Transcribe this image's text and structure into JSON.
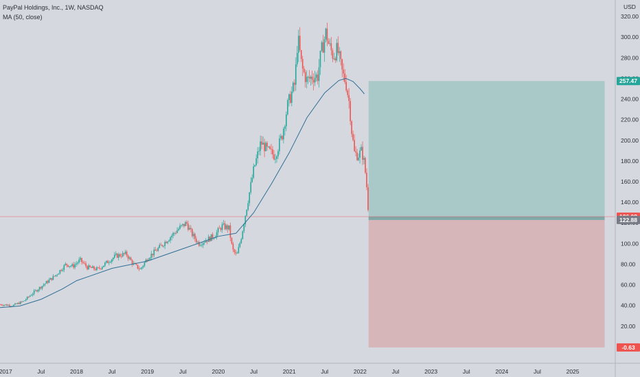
{
  "header": {
    "symbol_line": "PayPal Holdings, Inc., 1W, NASDAQ",
    "indicator_line": "MA (50, close)"
  },
  "currency": "USD",
  "colors": {
    "background": "#d5d8df",
    "up": "#26a69a",
    "down": "#ef5350",
    "ma": "#2f6f94",
    "profit_zone": "#a9c9c9",
    "loss_zone": "#d7b6ba",
    "last_price_line": "#ef5350",
    "axis_line": "#b2b5be"
  },
  "tags": {
    "target": {
      "label": "257.47",
      "value": 257.47,
      "color": "#26a69a"
    },
    "last": {
      "label": "126.08",
      "value": 126.08,
      "color": "#ef5350"
    },
    "entry": {
      "label": "122.88",
      "value": 122.88,
      "color": "#787b86"
    },
    "stop": {
      "label": "-0.63",
      "value": -0.63,
      "color": "#ef5350"
    }
  },
  "chart_data": {
    "type": "candlestick",
    "title": "PayPal Holdings, Inc., 1W, NASDAQ",
    "indicator": "MA (50, close)",
    "x_axis": {
      "start": 2016.92,
      "end": 2025.6,
      "tick_labels": [
        "2017",
        "Jul",
        "2018",
        "Jul",
        "2019",
        "Jul",
        "2020",
        "Jul",
        "2021",
        "Jul",
        "2022",
        "Jul",
        "2023",
        "Jul",
        "2024",
        "Jul",
        "2025"
      ],
      "tick_values": [
        2017.0,
        2017.5,
        2018.0,
        2018.5,
        2019.0,
        2019.5,
        2020.0,
        2020.5,
        2021.0,
        2021.5,
        2022.0,
        2022.5,
        2023.0,
        2023.5,
        2024.0,
        2024.5,
        2025.0
      ]
    },
    "y_axis": {
      "label": "USD",
      "ylim": [
        -16,
        336
      ],
      "tick_values": [
        20,
        40,
        60,
        80,
        100,
        120,
        140,
        160,
        180,
        200,
        220,
        240,
        260,
        280,
        300,
        320
      ],
      "tick_labels": [
        "20.00",
        "40.00",
        "60.00",
        "80.00",
        "100.00",
        "120.00",
        "140.00",
        "160.00",
        "180.00",
        "200.00",
        "220.00",
        "240.00",
        "260.00",
        "280.00",
        "300.00",
        "320.00"
      ]
    },
    "price_path": [
      [
        2016.92,
        41
      ],
      [
        2017.1,
        40
      ],
      [
        2017.25,
        44
      ],
      [
        2017.4,
        53
      ],
      [
        2017.55,
        61
      ],
      [
        2017.7,
        69
      ],
      [
        2017.85,
        80
      ],
      [
        2017.95,
        78
      ],
      [
        2018.05,
        84
      ],
      [
        2018.15,
        77
      ],
      [
        2018.3,
        75
      ],
      [
        2018.45,
        83
      ],
      [
        2018.55,
        88
      ],
      [
        2018.7,
        90
      ],
      [
        2018.8,
        80
      ],
      [
        2018.9,
        75
      ],
      [
        2019.0,
        86
      ],
      [
        2019.15,
        95
      ],
      [
        2019.3,
        105
      ],
      [
        2019.45,
        115
      ],
      [
        2019.55,
        120
      ],
      [
        2019.62,
        110
      ],
      [
        2019.72,
        100
      ],
      [
        2019.85,
        104
      ],
      [
        2019.95,
        108
      ],
      [
        2020.05,
        117
      ],
      [
        2020.15,
        115
      ],
      [
        2020.2,
        94
      ],
      [
        2020.26,
        88
      ],
      [
        2020.32,
        105
      ],
      [
        2020.4,
        135
      ],
      [
        2020.5,
        172
      ],
      [
        2020.6,
        198
      ],
      [
        2020.7,
        190
      ],
      [
        2020.8,
        185
      ],
      [
        2020.9,
        205
      ],
      [
        2020.98,
        235
      ],
      [
        2021.08,
        255
      ],
      [
        2021.12,
        300
      ],
      [
        2021.18,
        270
      ],
      [
        2021.25,
        258
      ],
      [
        2021.33,
        262
      ],
      [
        2021.4,
        262
      ],
      [
        2021.45,
        285
      ],
      [
        2021.52,
        305
      ],
      [
        2021.56,
        292
      ],
      [
        2021.62,
        282
      ],
      [
        2021.68,
        288
      ],
      [
        2021.75,
        265
      ],
      [
        2021.8,
        256
      ],
      [
        2021.85,
        235
      ],
      [
        2021.88,
        210
      ],
      [
        2021.92,
        188
      ],
      [
        2021.97,
        185
      ],
      [
        2022.02,
        190
      ],
      [
        2022.06,
        178
      ],
      [
        2022.08,
        165
      ],
      [
        2022.1,
        150
      ],
      [
        2022.12,
        126.08
      ]
    ],
    "ma_path": [
      [
        2016.92,
        38
      ],
      [
        2017.2,
        39.5
      ],
      [
        2017.5,
        46
      ],
      [
        2017.8,
        56
      ],
      [
        2018.0,
        64
      ],
      [
        2018.5,
        76
      ],
      [
        2019.0,
        83
      ],
      [
        2019.5,
        95
      ],
      [
        2020.0,
        107
      ],
      [
        2020.25,
        110
      ],
      [
        2020.5,
        130
      ],
      [
        2020.75,
        158
      ],
      [
        2021.0,
        188
      ],
      [
        2021.25,
        222
      ],
      [
        2021.5,
        246
      ],
      [
        2021.7,
        258
      ],
      [
        2021.8,
        260
      ],
      [
        2021.9,
        257
      ],
      [
        2022.0,
        250
      ],
      [
        2022.06,
        245
      ]
    ],
    "position": {
      "type": "long",
      "x_start": 2022.12,
      "x_end": 2025.45,
      "entry": 122.88,
      "target": 257.47,
      "stop": -0.63,
      "last_price": 126.08
    }
  }
}
